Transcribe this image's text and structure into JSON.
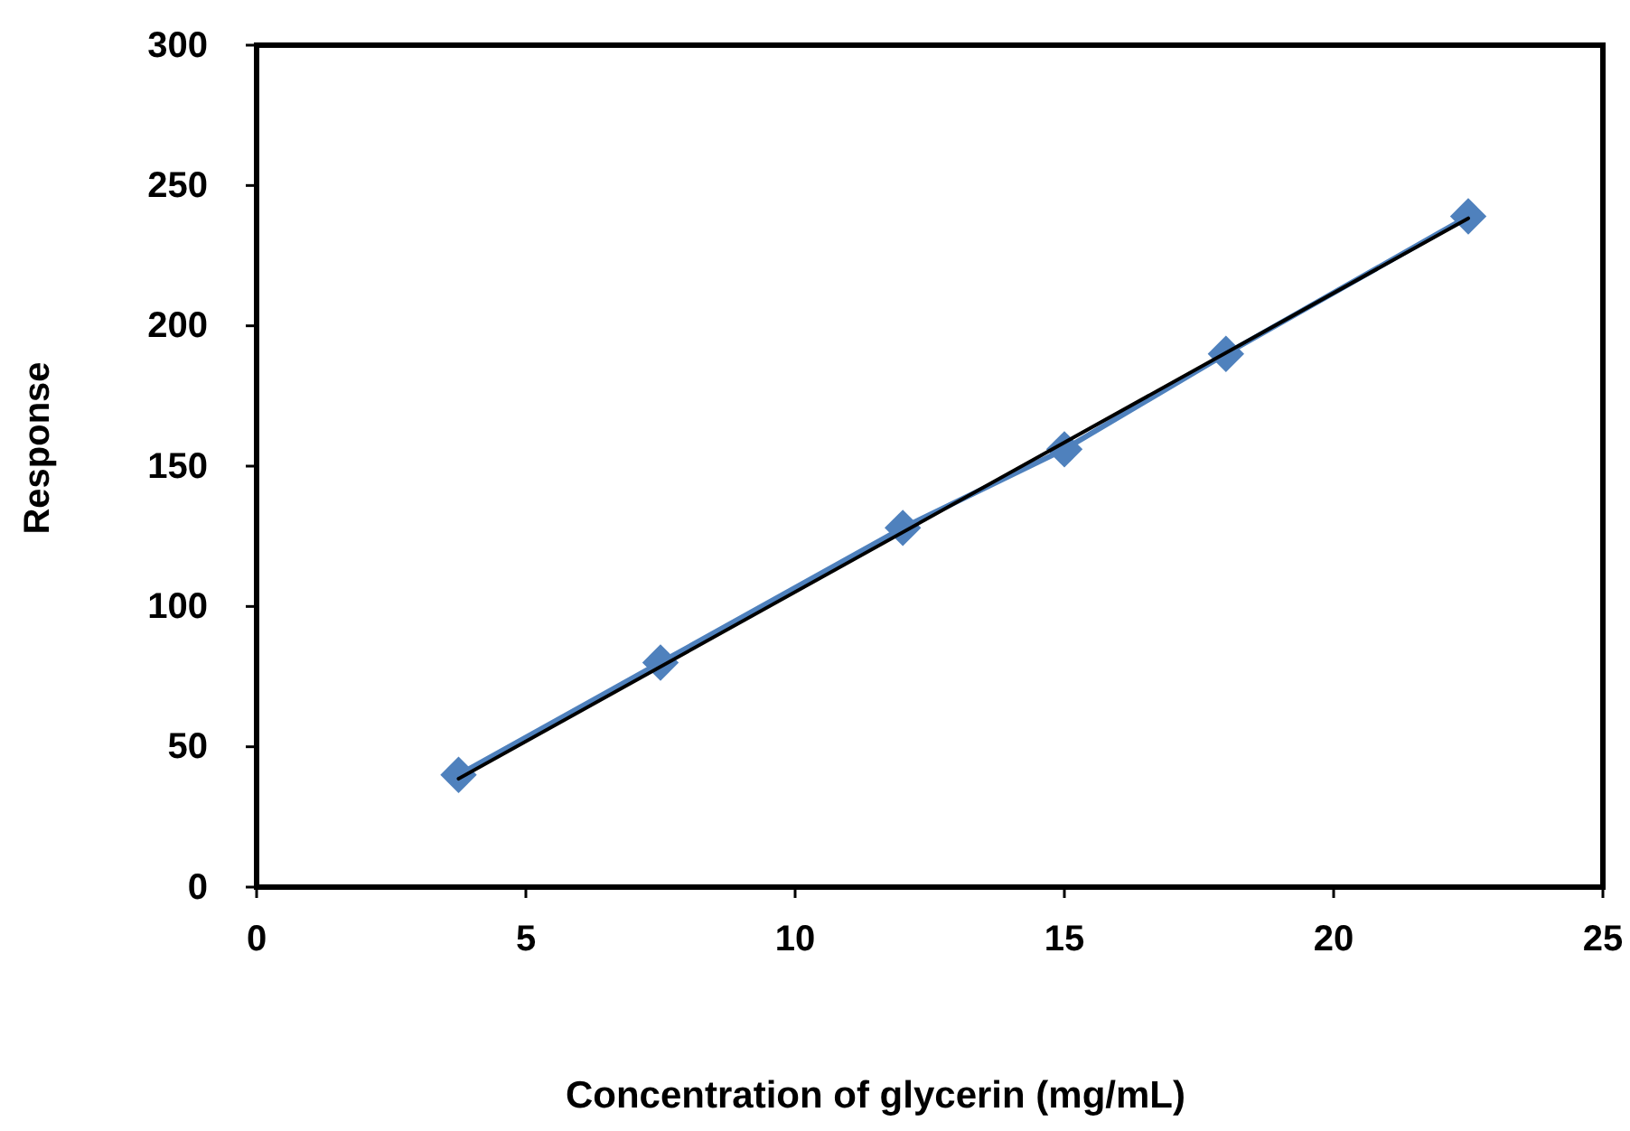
{
  "chart_data": {
    "type": "line",
    "xlabel": "Concentration of glycerin (mg/mL)",
    "ylabel": "Response",
    "xlim": [
      0,
      25
    ],
    "xticks": [
      0,
      5,
      10,
      15,
      20,
      25
    ],
    "ylim": [
      0,
      300
    ],
    "yticks": [
      0,
      50,
      100,
      150,
      200,
      250,
      300
    ],
    "grid": false,
    "marker": "diamond",
    "line_style": "solid",
    "series": [
      {
        "color": "#4f81bd",
        "x": [
          3.75,
          7.5,
          12,
          15,
          18,
          22.5
        ],
        "values": [
          40,
          80,
          128,
          156,
          190,
          239
        ]
      },
      {
        "type": "line",
        "color": "#000000",
        "marker": "none",
        "x": [
          3.75,
          22.5
        ],
        "values": [
          38.6,
          238.3
        ]
      }
    ]
  }
}
